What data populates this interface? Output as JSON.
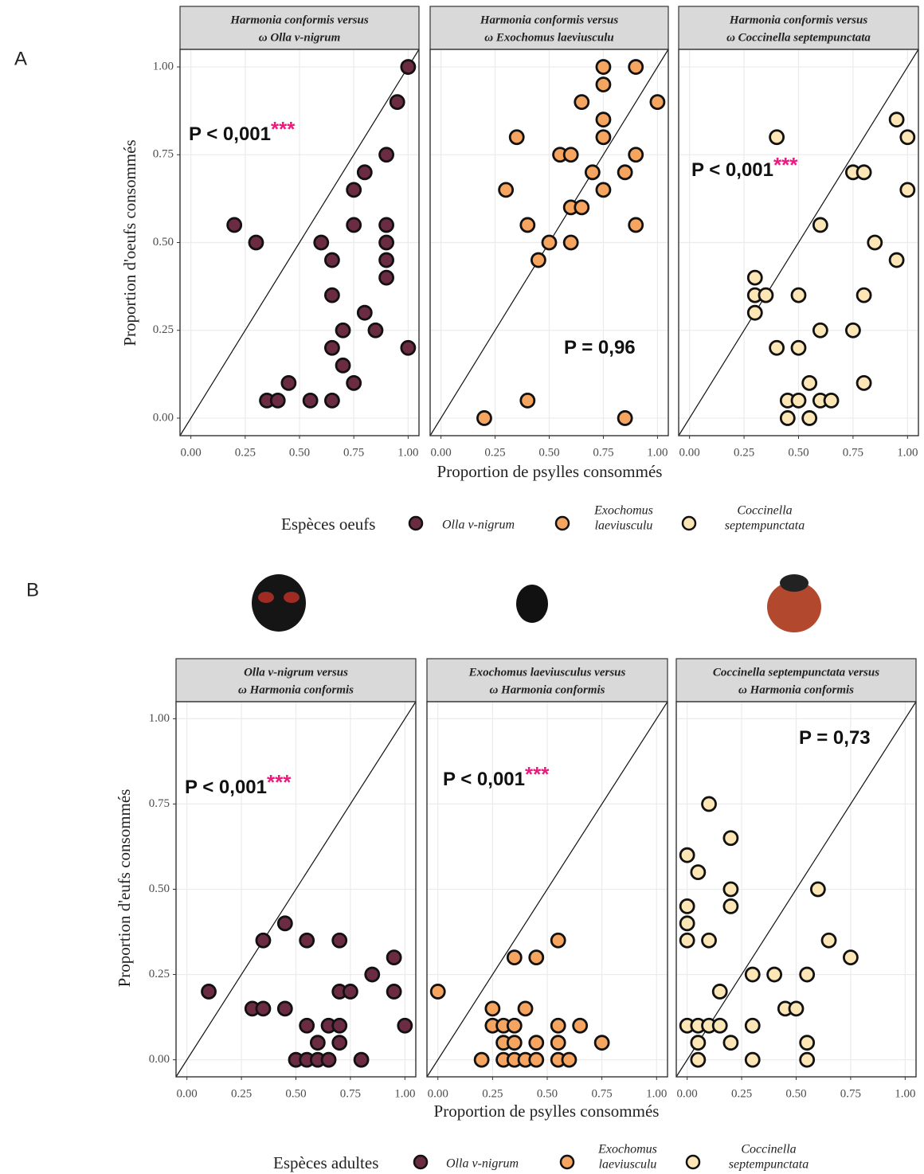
{
  "figures": [
    {
      "label": "A",
      "y_label": "Proportion d'oeufs consommés",
      "x_label": "Proportion de psylles consommés",
      "legend_title": "Espèces oeufs",
      "legend": [
        {
          "name": [
            "Olla v-nigrum"
          ],
          "color": "#6b2c43"
        },
        {
          "name": [
            "Exochomus",
            "laeviusculu"
          ],
          "color": "#f6a560"
        },
        {
          "name": [
            "Coccinella",
            "septempunctata"
          ],
          "color": "#fde6b6"
        }
      ]
    },
    {
      "label": "B",
      "y_label": "Proportion d'eufs consommés",
      "x_label": "Proportion de psylles consommés",
      "legend_title": "Espèces adultes",
      "legend": [
        {
          "name": [
            "Olla v-nigrum"
          ],
          "color": "#6b2c43"
        },
        {
          "name": [
            "Exochomus",
            "laeviusculu"
          ],
          "color": "#f6a560"
        },
        {
          "name": [
            "Coccinella",
            "septempunctata"
          ],
          "color": "#fde6b6"
        }
      ]
    }
  ],
  "chart_data": [
    {
      "type": "scatter",
      "title": [
        "Harmonia conformis versus",
        "ω Olla v-nigrum"
      ],
      "annotation": "P < 0,001",
      "annotation_stars": "***",
      "color": "#6b2c43",
      "grid": true,
      "x": [
        1.0,
        0.95,
        0.9,
        0.8,
        0.75,
        0.2,
        0.75,
        0.9,
        0.3,
        0.6,
        0.9,
        0.65,
        0.9,
        0.9,
        0.65,
        0.8,
        0.7,
        0.85,
        0.65,
        1.0,
        0.7,
        0.45,
        0.75,
        0.35,
        0.4,
        0.55,
        0.65
      ],
      "values": [
        1.0,
        0.9,
        0.75,
        0.7,
        0.65,
        0.55,
        0.55,
        0.55,
        0.5,
        0.5,
        0.5,
        0.45,
        0.45,
        0.4,
        0.35,
        0.3,
        0.25,
        0.25,
        0.2,
        0.2,
        0.15,
        0.1,
        0.1,
        0.05,
        0.05,
        0.05,
        0.05
      ],
      "xlim": [
        -0.05,
        1.05
      ],
      "ylim": [
        -0.05,
        1.05
      ],
      "xticks": [
        {
          "value": 0,
          "label": "0.00"
        },
        {
          "value": 0.25,
          "label": "0.25"
        },
        {
          "value": 0.5,
          "label": "0.50"
        },
        {
          "value": 0.75,
          "label": "0.75"
        },
        {
          "value": 1,
          "label": "1.00"
        }
      ],
      "yticks": [
        {
          "value": 0,
          "label": "0.00"
        },
        {
          "value": 0.25,
          "label": "0.25"
        },
        {
          "value": 0.5,
          "label": "0.50"
        },
        {
          "value": 0.75,
          "label": "0.75"
        },
        {
          "value": 1,
          "label": "1.00"
        }
      ]
    },
    {
      "type": "scatter",
      "title": [
        "Harmonia conformis versus",
        "ω Exochomus laeviusculu"
      ],
      "annotation": "P = 0,96",
      "color": "#f6a560",
      "grid": true,
      "x": [
        0.75,
        0.9,
        0.75,
        0.65,
        1.0,
        0.75,
        0.35,
        0.75,
        0.55,
        0.6,
        0.9,
        0.7,
        0.85,
        0.3,
        0.75,
        0.6,
        0.65,
        0.4,
        0.9,
        0.5,
        0.6,
        0.45,
        0.2,
        0.4,
        0.85
      ],
      "values": [
        1.0,
        1.0,
        0.95,
        0.9,
        0.9,
        0.85,
        0.8,
        0.8,
        0.75,
        0.75,
        0.75,
        0.7,
        0.7,
        0.65,
        0.65,
        0.6,
        0.6,
        0.55,
        0.55,
        0.5,
        0.5,
        0.45,
        0.0,
        0.05,
        0.0
      ],
      "xlim": [
        -0.05,
        1.05
      ],
      "ylim": [
        -0.05,
        1.05
      ],
      "xticks": [
        {
          "value": 0,
          "label": "0.00"
        },
        {
          "value": 0.25,
          "label": "0.25"
        },
        {
          "value": 0.5,
          "label": "0.50"
        },
        {
          "value": 0.75,
          "label": "0.75"
        },
        {
          "value": 1,
          "label": "1.00"
        }
      ]
    },
    {
      "type": "scatter",
      "title": [
        "Harmonia conformis versus",
        "ω Coccinella septempunctata"
      ],
      "annotation": "P < 0,001",
      "annotation_stars": "***",
      "color": "#fde6b6",
      "grid": true,
      "x": [
        0.95,
        0.4,
        1.0,
        0.75,
        0.8,
        1.0,
        0.6,
        0.85,
        0.95,
        0.3,
        0.3,
        0.35,
        0.5,
        0.8,
        0.3,
        0.6,
        0.75,
        0.4,
        0.5,
        0.55,
        0.8,
        0.45,
        0.5,
        0.6,
        0.65,
        0.45,
        0.55
      ],
      "values": [
        0.85,
        0.8,
        0.8,
        0.7,
        0.7,
        0.65,
        0.55,
        0.5,
        0.45,
        0.4,
        0.35,
        0.35,
        0.35,
        0.35,
        0.3,
        0.25,
        0.25,
        0.2,
        0.2,
        0.1,
        0.1,
        0.05,
        0.05,
        0.05,
        0.05,
        0.0,
        0.0
      ],
      "xlim": [
        -0.05,
        1.05
      ],
      "ylim": [
        -0.05,
        1.05
      ],
      "xticks": [
        {
          "value": 0,
          "label": "0.00"
        },
        {
          "value": 0.25,
          "label": "0.25"
        },
        {
          "value": 0.5,
          "label": "0.50"
        },
        {
          "value": 0.75,
          "label": "0.75"
        },
        {
          "value": 1,
          "label": "1.00"
        }
      ]
    },
    {
      "type": "scatter",
      "title": [
        "Olla v-nigrum versus",
        "ω Harmonia conformis"
      ],
      "annotation": "P < 0,001",
      "annotation_stars": "***",
      "color": "#6b2c43",
      "grid": true,
      "x": [
        0.45,
        0.35,
        0.55,
        0.7,
        0.95,
        0.85,
        0.1,
        0.7,
        0.75,
        0.95,
        0.3,
        0.35,
        0.45,
        0.55,
        0.65,
        0.7,
        1.0,
        0.6,
        0.7,
        0.5,
        0.55,
        0.6,
        0.65,
        0.8
      ],
      "values": [
        0.4,
        0.35,
        0.35,
        0.35,
        0.3,
        0.25,
        0.2,
        0.2,
        0.2,
        0.2,
        0.15,
        0.15,
        0.15,
        0.1,
        0.1,
        0.1,
        0.1,
        0.05,
        0.05,
        0.0,
        0.0,
        0.0,
        0.0,
        0.0
      ],
      "xlim": [
        -0.05,
        1.05
      ],
      "ylim": [
        -0.05,
        1.05
      ],
      "xticks": [
        {
          "value": 0,
          "label": "0.00"
        },
        {
          "value": 0.25,
          "label": "0.25"
        },
        {
          "value": 0.5,
          "label": "0.50"
        },
        {
          "value": 0.75,
          "label": "0.75"
        },
        {
          "value": 1,
          "label": "1.00"
        }
      ],
      "yticks": [
        {
          "value": 0,
          "label": "0.00"
        },
        {
          "value": 0.25,
          "label": "0.25"
        },
        {
          "value": 0.5,
          "label": "0.50"
        },
        {
          "value": 0.75,
          "label": "0.75"
        },
        {
          "value": 1,
          "label": "1.00"
        }
      ]
    },
    {
      "type": "scatter",
      "title": [
        "Exochomus laeviusculus versus",
        "ω Harmonia conformis"
      ],
      "annotation": "P < 0,001",
      "annotation_stars": "***",
      "color": "#f6a560",
      "grid": true,
      "x": [
        0.35,
        0.45,
        0.55,
        0.0,
        0.25,
        0.4,
        0.25,
        0.3,
        0.35,
        0.55,
        0.65,
        0.3,
        0.35,
        0.45,
        0.55,
        0.75,
        0.2,
        0.3,
        0.35,
        0.4,
        0.45,
        0.55,
        0.6
      ],
      "values": [
        0.3,
        0.3,
        0.35,
        0.2,
        0.15,
        0.15,
        0.1,
        0.1,
        0.1,
        0.1,
        0.1,
        0.05,
        0.05,
        0.05,
        0.05,
        0.05,
        0.0,
        0.0,
        0.0,
        0.0,
        0.0,
        0.0,
        0.0
      ],
      "xlim": [
        -0.05,
        1.05
      ],
      "ylim": [
        -0.05,
        1.05
      ],
      "xticks": [
        {
          "value": 0,
          "label": "0.00"
        },
        {
          "value": 0.25,
          "label": "0.25"
        },
        {
          "value": 0.5,
          "label": "0.50"
        },
        {
          "value": 0.75,
          "label": "0.75"
        },
        {
          "value": 1,
          "label": "1.00"
        }
      ]
    },
    {
      "type": "scatter",
      "title": [
        "Coccinella septempunctata versus",
        "ω Harmonia conformis"
      ],
      "annotation": "P = 0,73",
      "color": "#fde6b6",
      "grid": true,
      "x": [
        0.1,
        0.2,
        0.0,
        0.05,
        0.2,
        0.6,
        0.0,
        0.2,
        0.0,
        0.0,
        0.1,
        0.65,
        0.75,
        0.3,
        0.4,
        0.55,
        0.15,
        0.45,
        0.5,
        0.0,
        0.05,
        0.1,
        0.15,
        0.3,
        0.05,
        0.2,
        0.55,
        0.05,
        0.3,
        0.55
      ],
      "values": [
        0.75,
        0.65,
        0.6,
        0.55,
        0.5,
        0.5,
        0.45,
        0.45,
        0.4,
        0.35,
        0.35,
        0.35,
        0.3,
        0.25,
        0.25,
        0.25,
        0.2,
        0.15,
        0.15,
        0.1,
        0.1,
        0.1,
        0.1,
        0.1,
        0.05,
        0.05,
        0.05,
        0.0,
        0.0,
        0.0
      ],
      "xlim": [
        -0.05,
        1.05
      ],
      "ylim": [
        -0.05,
        1.05
      ],
      "xticks": [
        {
          "value": 0,
          "label": "0.00"
        },
        {
          "value": 0.25,
          "label": "0.25"
        },
        {
          "value": 0.5,
          "label": "0.50"
        },
        {
          "value": 0.75,
          "label": "0.75"
        },
        {
          "value": 1,
          "label": "1.00"
        }
      ]
    }
  ]
}
